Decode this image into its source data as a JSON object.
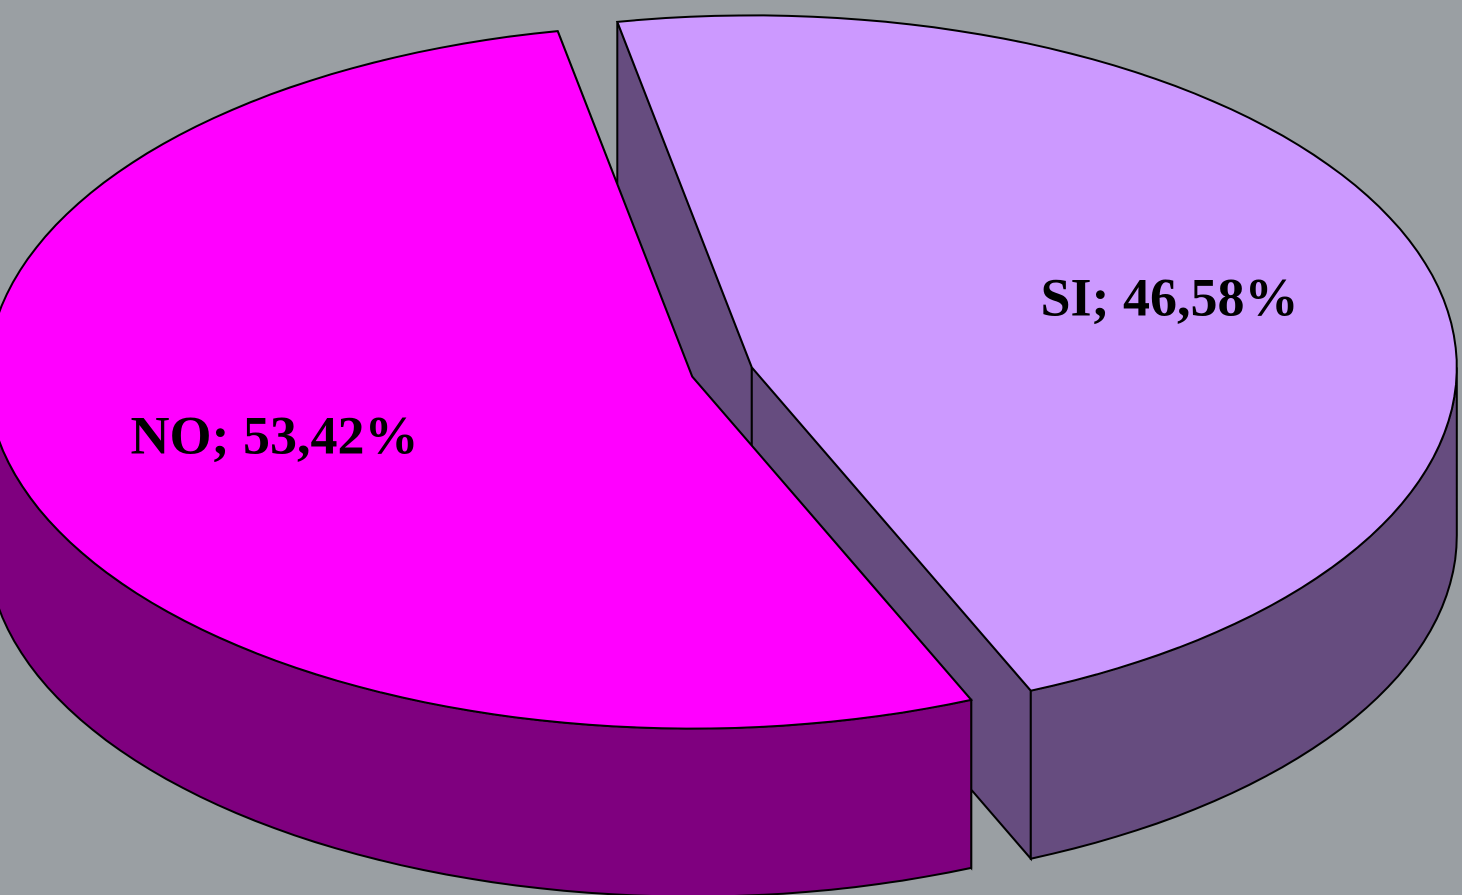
{
  "chart_data": {
    "type": "pie",
    "values": [
      46.58,
      53.42
    ],
    "value_labels": [
      "SI; 46,58%",
      "NO; 53,42%"
    ],
    "colors": [
      "#cc99ff",
      "#ff00ff"
    ]
  }
}
